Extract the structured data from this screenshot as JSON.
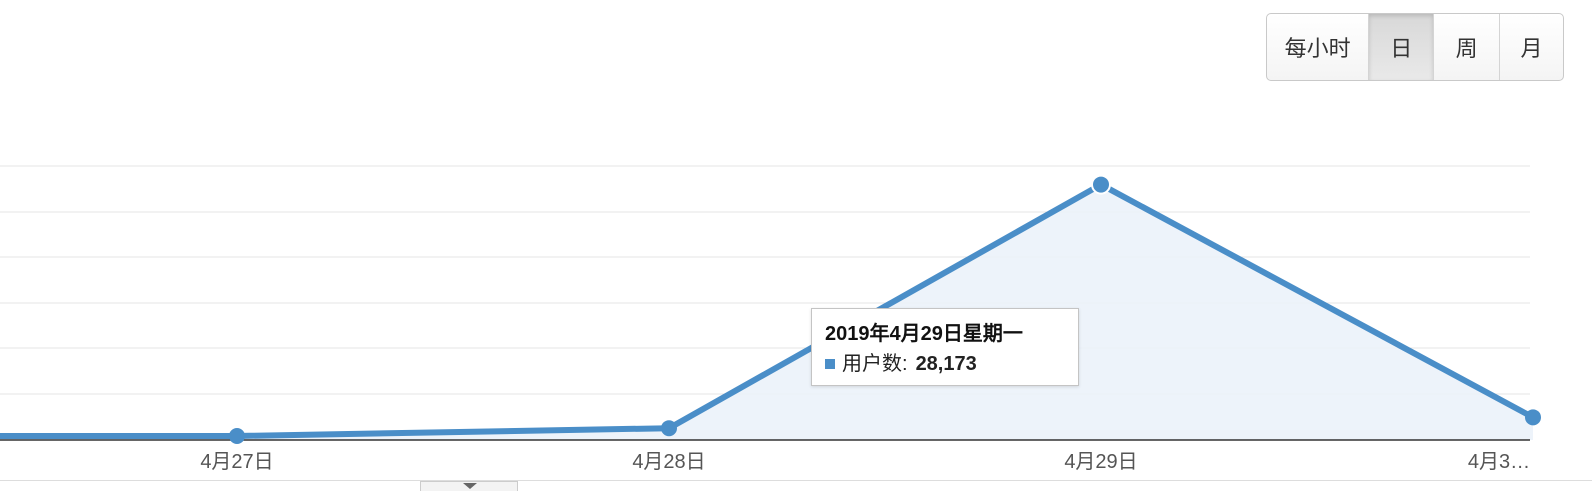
{
  "granularity": {
    "options": [
      "每小时",
      "日",
      "周",
      "月"
    ],
    "selected": "日"
  },
  "tooltip": {
    "title": "2019年4月29日星期一",
    "metric": "用户数:",
    "value": "28,173"
  },
  "colors": {
    "line": "#4a8ec8",
    "area": "#eaf1f9",
    "grid": "#e6e6e6",
    "baseline": "#333333",
    "tick_text": "#555555"
  },
  "chart_data": {
    "type": "area",
    "x": [
      "",
      "4月27日",
      "4月28日",
      "4月29日",
      "4月3…"
    ],
    "series": [
      {
        "name": "用户数",
        "values": [
          0,
          0,
          1300,
          28173,
          2500
        ]
      }
    ],
    "ylim": [
      0,
      30000
    ],
    "grid": true,
    "xlabel": "",
    "ylabel": ""
  },
  "bottom_tab_icon": "caret-down-icon"
}
